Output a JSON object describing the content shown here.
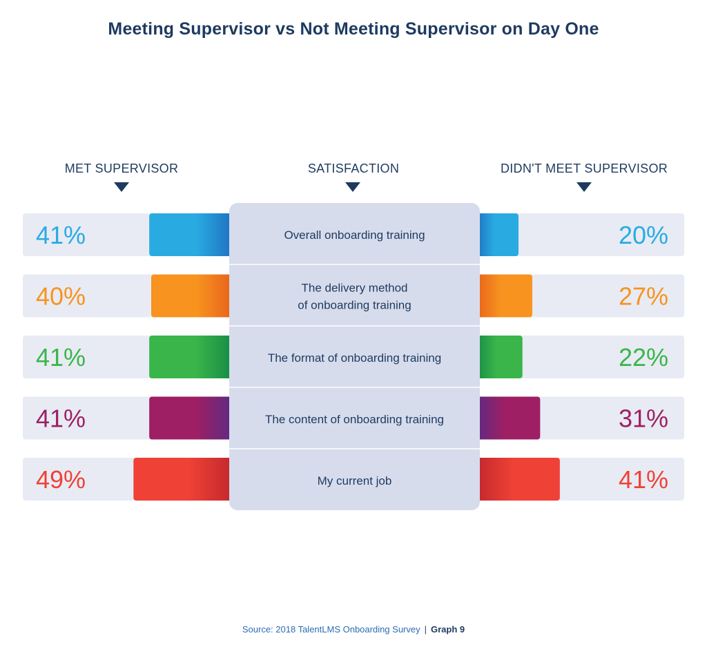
{
  "title": "Meeting Supervisor vs Not Meeting Supervisor on Day One",
  "headers": {
    "left": "MET SUPERVISOR",
    "center": "SATISFACTION",
    "right": "DIDN'T MEET SUPERVISOR"
  },
  "source": {
    "text": "Source: 2018 TalentLMS Onboarding Survey",
    "separator": "|",
    "graph": "Graph 9"
  },
  "chart_data": {
    "type": "bar",
    "categories": [
      [
        "Overall onboarding training"
      ],
      [
        "The delivery method",
        "of onboarding training"
      ],
      [
        "The format of onboarding training"
      ],
      [
        "The content of onboarding training"
      ],
      [
        "My current job"
      ]
    ],
    "series": [
      {
        "name": "MET SUPERVISOR",
        "values": [
          41,
          40,
          41,
          41,
          49
        ],
        "labels": [
          "41%",
          "40%",
          "41%",
          "41%",
          "49%"
        ]
      },
      {
        "name": "DIDN'T MEET SUPERVISOR",
        "values": [
          20,
          27,
          22,
          31,
          41
        ],
        "labels": [
          "20%",
          "27%",
          "22%",
          "31%",
          "41%"
        ]
      }
    ],
    "colors": [
      "#29abe2",
      "#f7931e",
      "#39b54a",
      "#9e1f63",
      "#ef4136"
    ],
    "colors_dark": [
      "#1f6fbf",
      "#e8601c",
      "#168a45",
      "#5b2a86",
      "#c1272d"
    ],
    "row_background": "#e8ebf4",
    "center_panel": "#d6dcec",
    "unit": "%"
  }
}
